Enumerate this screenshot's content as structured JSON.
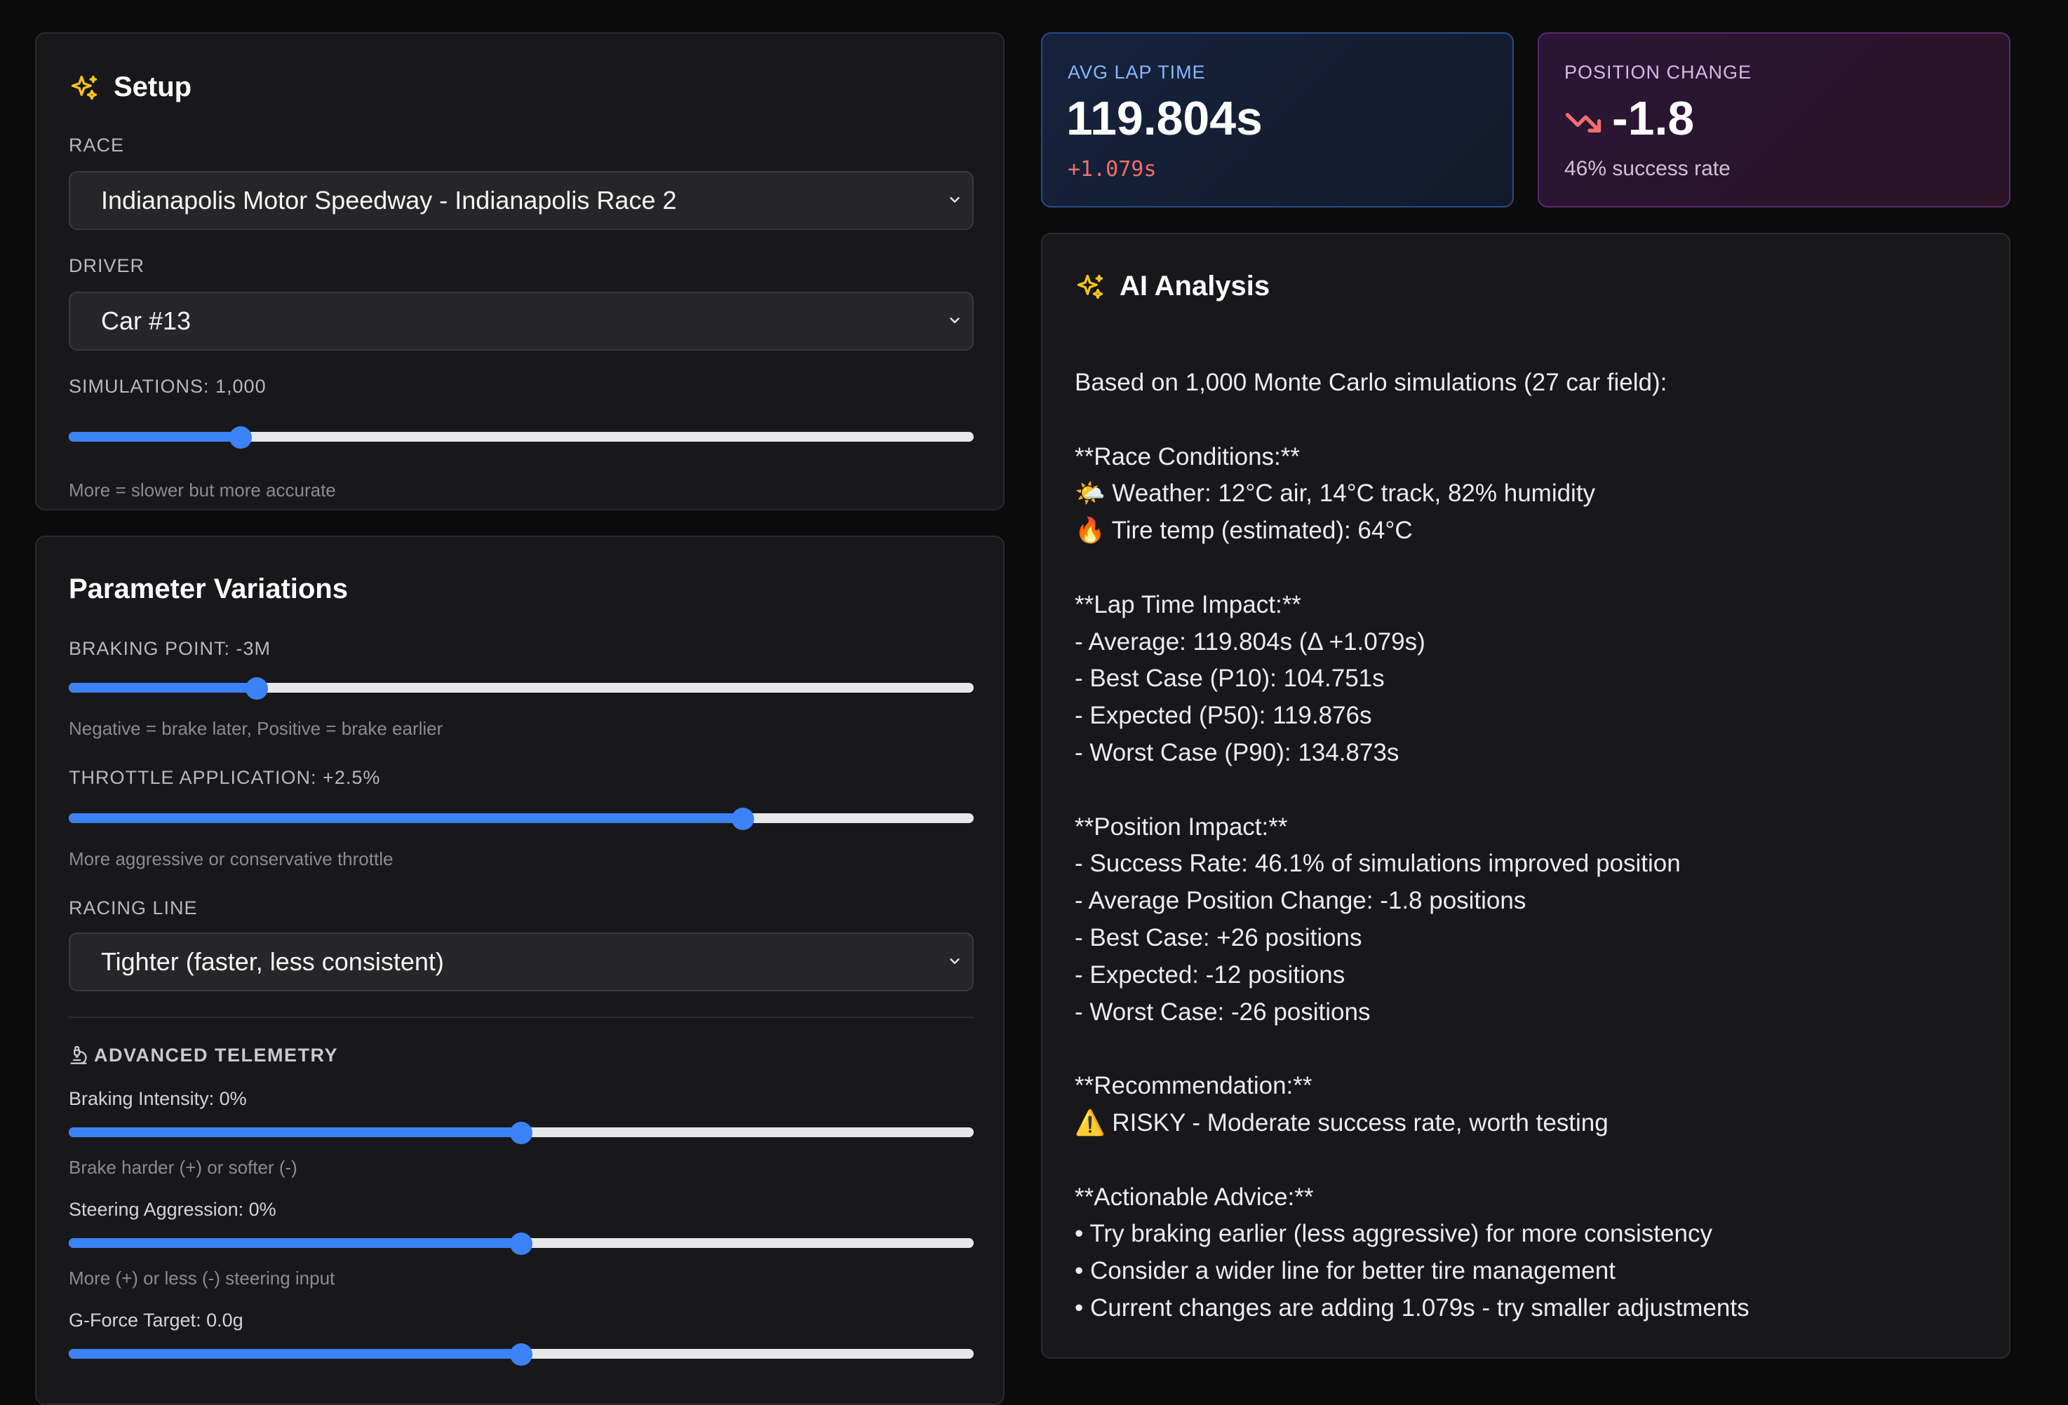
{
  "setup": {
    "title": "Setup",
    "race_label": "RACE",
    "race_value": "Indianapolis Motor Speedway - Indianapolis Race 2",
    "driver_label": "DRIVER",
    "driver_value": "Car #13",
    "simulations_label": "SIMULATIONS: 1,000",
    "simulations_level": 0.19,
    "simulations_hint": "More = slower but more accurate"
  },
  "params": {
    "title": "Parameter Variations",
    "braking_label": "BRAKING POINT: -3M",
    "braking_level": 0.208,
    "braking_hint": "Negative = brake later, Positive = brake earlier",
    "throttle_label": "THROTTLE APPLICATION: +2.5%",
    "throttle_level": 0.745,
    "throttle_hint": "More aggressive or conservative throttle",
    "racing_line_label": "RACING LINE",
    "racing_line_value": "Tighter (faster, less consistent)",
    "advanced_title": "ADVANCED TELEMETRY",
    "braking_intensity_label": "Braking Intensity: 0%",
    "braking_intensity_level": 0.5,
    "braking_intensity_hint": "Brake harder (+) or softer (-)",
    "steering_label": "Steering Aggression: 0%",
    "steering_level": 0.5,
    "steering_hint": "More (+) or less (-) steering input",
    "gforce_label": "G-Force Target: 0.0g",
    "gforce_level": 0.5
  },
  "avg_lap": {
    "label": "AVG LAP TIME",
    "value": "119.804s",
    "delta": "+1.079s"
  },
  "position_change": {
    "label": "POSITION CHANGE",
    "value": "-1.8",
    "sub": "46% success rate"
  },
  "analysis": {
    "title": "AI Analysis",
    "lines": [
      "Based on 1,000 Monte Carlo simulations (27 car field):",
      "",
      "**Race Conditions:**",
      "🌤️ Weather: 12°C air, 14°C track, 82% humidity",
      "🔥 Tire temp (estimated): 64°C",
      "",
      "**Lap Time Impact:**",
      "- Average: 119.804s (Δ +1.079s)",
      "- Best Case (P10): 104.751s",
      "- Expected (P50): 119.876s",
      "- Worst Case (P90): 134.873s",
      "",
      "**Position Impact:**",
      "- Success Rate: 46.1% of simulations improved position",
      "- Average Position Change: -1.8 positions",
      "- Best Case: +26 positions",
      "- Expected: -12 positions",
      "- Worst Case: -26 positions",
      "",
      "**Recommendation:**",
      "⚠️ RISKY - Moderate success rate, worth testing",
      "",
      "**Actionable Advice:**",
      "• Try braking earlier (less aggressive) for more consistency",
      "• Consider a wider line for better tire management",
      "• Current changes are adding 1.079s - try smaller adjustments"
    ]
  },
  "colors": {
    "accent": "#3b82f6",
    "sparkle": "#f5c518",
    "negative": "#f26d6d"
  }
}
